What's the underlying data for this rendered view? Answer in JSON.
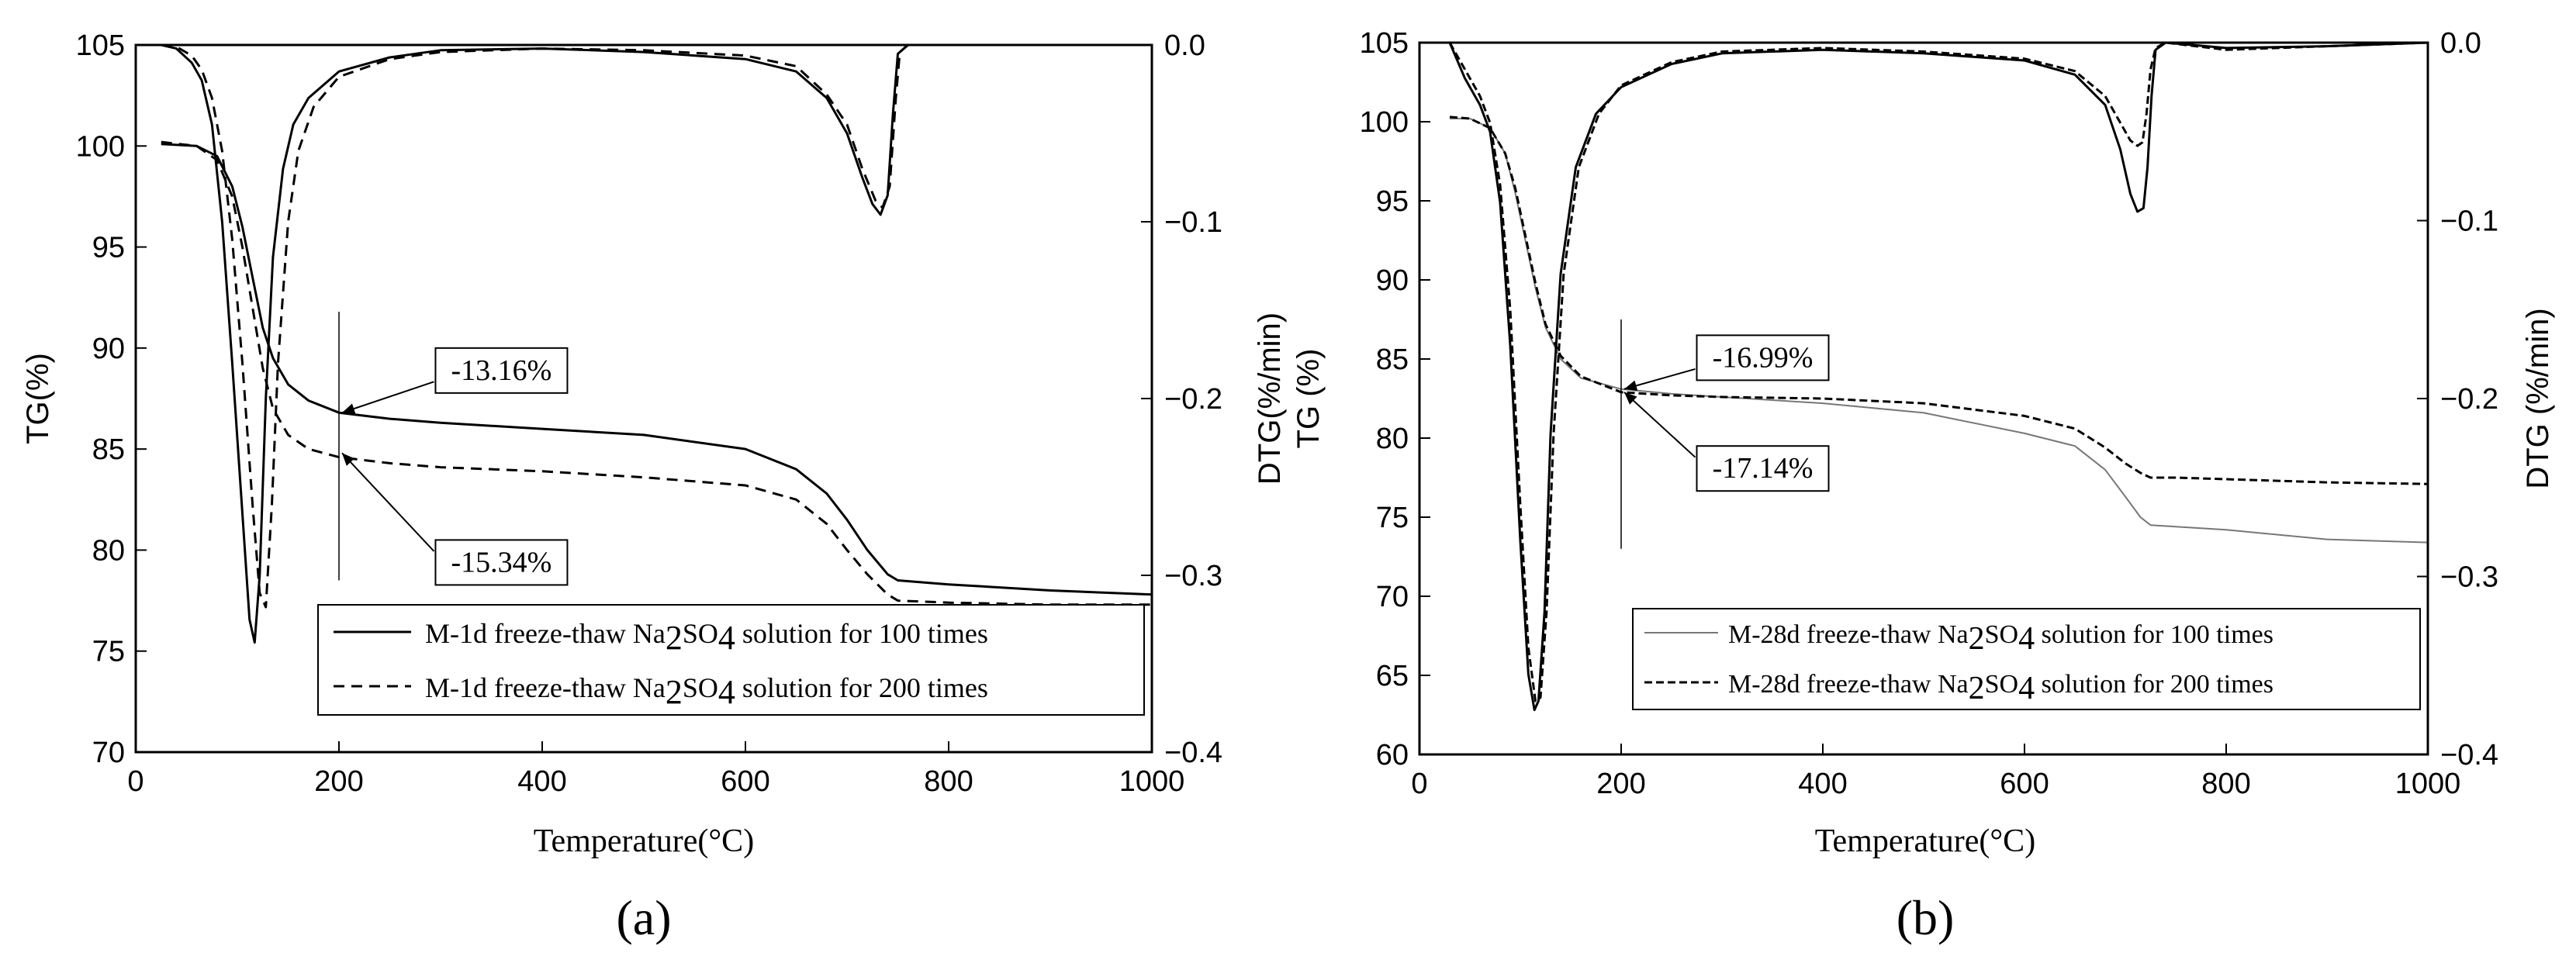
{
  "chart_data": [
    {
      "type": "line",
      "panel_label": "(a)",
      "xlabel": "Temperature(°C)",
      "ylabel_left": "TG(%)",
      "ylabel_right": "DTG(%/min)",
      "xlim": [
        0,
        1000
      ],
      "ylim_left": [
        70,
        105
      ],
      "ylim_right": [
        -0.4,
        0.0
      ],
      "x_ticks": [
        0,
        200,
        400,
        600,
        800,
        1000
      ],
      "x_tick_labels": [
        "0",
        "200",
        "400",
        "600",
        "800",
        "1000"
      ],
      "y_left_ticks": [
        70,
        75,
        80,
        85,
        90,
        95,
        100,
        105
      ],
      "y_left_tick_labels": [
        "70",
        "75",
        "80",
        "85",
        "90",
        "95",
        "100",
        "105"
      ],
      "y_right_ticks": [
        0.0,
        -0.1,
        -0.2,
        -0.3,
        -0.4
      ],
      "y_right_tick_labels": [
        "0.0",
        "−0.1",
        "−0.2",
        "−0.3",
        "−0.4"
      ],
      "vline_x": 200,
      "vline_tg_range": [
        78.5,
        91.8
      ],
      "legend": [
        {
          "pre": "M-1d freeze-thaw Na",
          "sub1": "2",
          "mid": "SO",
          "sub2": "4",
          "post": " solution for 100 times"
        },
        {
          "pre": "M-1d freeze-thaw Na",
          "sub1": "2",
          "mid": "SO",
          "sub2": "4",
          "post": " solution for 200 times"
        }
      ],
      "annotations": [
        {
          "text": "-13.16%",
          "target": [
            200,
            86.8
          ],
          "box_at": [
            295,
            90.0
          ]
        },
        {
          "text": "-15.34%",
          "target": [
            200,
            84.8
          ],
          "box_at": [
            295,
            80.5
          ]
        }
      ],
      "series": [
        {
          "name": "TG 100 times",
          "axis": "left",
          "style": "solid",
          "x": [
            25,
            60,
            80,
            95,
            105,
            115,
            125,
            135,
            150,
            170,
            200,
            250,
            300,
            400,
            500,
            600,
            650,
            680,
            700,
            720,
            740,
            750,
            800,
            900,
            1000
          ],
          "y": [
            100.1,
            100.0,
            99.5,
            98.0,
            96.0,
            93.5,
            91.0,
            89.5,
            88.2,
            87.4,
            86.8,
            86.5,
            86.3,
            86.0,
            85.7,
            85.0,
            84.0,
            82.8,
            81.5,
            80.0,
            78.8,
            78.5,
            78.3,
            78.0,
            77.8
          ]
        },
        {
          "name": "TG 200 times",
          "axis": "left",
          "style": "dashed",
          "x": [
            25,
            60,
            80,
            95,
            105,
            115,
            125,
            135,
            150,
            170,
            200,
            250,
            300,
            400,
            500,
            600,
            650,
            680,
            700,
            720,
            740,
            750,
            800,
            900,
            1000
          ],
          "y": [
            100.2,
            100.0,
            99.3,
            97.5,
            95.0,
            92.0,
            89.0,
            87.0,
            85.7,
            85.0,
            84.6,
            84.3,
            84.1,
            83.9,
            83.6,
            83.2,
            82.5,
            81.3,
            80.0,
            78.8,
            77.8,
            77.5,
            77.4,
            77.3,
            77.3
          ]
        },
        {
          "name": "DTG 100 times",
          "axis": "right",
          "style": "solid",
          "x": [
            25,
            40,
            55,
            65,
            75,
            85,
            95,
            105,
            112,
            117,
            122,
            128,
            135,
            145,
            155,
            170,
            200,
            250,
            300,
            400,
            500,
            600,
            650,
            680,
            700,
            715,
            725,
            733,
            740,
            745,
            750,
            760,
            800,
            900,
            1000
          ],
          "y": [
            0.0,
            -0.002,
            -0.01,
            -0.02,
            -0.045,
            -0.1,
            -0.18,
            -0.265,
            -0.325,
            -0.338,
            -0.3,
            -0.2,
            -0.12,
            -0.07,
            -0.045,
            -0.03,
            -0.015,
            -0.007,
            -0.003,
            -0.002,
            -0.004,
            -0.008,
            -0.015,
            -0.03,
            -0.05,
            -0.075,
            -0.09,
            -0.096,
            -0.085,
            -0.04,
            -0.005,
            0.0,
            0.0,
            0.0,
            0.0
          ]
        },
        {
          "name": "DTG 200 times",
          "axis": "right",
          "style": "dashed",
          "x": [
            25,
            40,
            55,
            65,
            75,
            85,
            95,
            105,
            115,
            122,
            128,
            134,
            140,
            150,
            160,
            175,
            200,
            250,
            300,
            400,
            500,
            600,
            650,
            680,
            700,
            715,
            728,
            735,
            742,
            748,
            752,
            760,
            800,
            900,
            1000
          ],
          "y": [
            0.0,
            -0.001,
            -0.006,
            -0.014,
            -0.03,
            -0.06,
            -0.11,
            -0.18,
            -0.26,
            -0.31,
            -0.318,
            -0.26,
            -0.18,
            -0.1,
            -0.06,
            -0.035,
            -0.018,
            -0.008,
            -0.004,
            -0.002,
            -0.003,
            -0.006,
            -0.012,
            -0.028,
            -0.045,
            -0.07,
            -0.088,
            -0.092,
            -0.08,
            -0.03,
            -0.004,
            0.0,
            0.0,
            0.0,
            0.0
          ]
        }
      ]
    },
    {
      "type": "line",
      "panel_label": "(b)",
      "xlabel": "Temperature(°C)",
      "ylabel_left": "TG (%)",
      "ylabel_right": "DTG (%/min)",
      "xlim": [
        0,
        1000
      ],
      "ylim_left": [
        60,
        105
      ],
      "ylim_right": [
        -0.4,
        0.0
      ],
      "x_ticks": [
        0,
        200,
        400,
        600,
        800,
        1000
      ],
      "x_tick_labels": [
        "0",
        "200",
        "400",
        "600",
        "800",
        "1000"
      ],
      "y_left_ticks": [
        60,
        65,
        70,
        75,
        80,
        85,
        90,
        95,
        100,
        105
      ],
      "y_left_tick_labels": [
        "60",
        "65",
        "70",
        "75",
        "80",
        "85",
        "90",
        "95",
        "100",
        "105"
      ],
      "y_right_ticks": [
        0.0,
        -0.1,
        -0.2,
        -0.3,
        -0.4
      ],
      "y_right_tick_labels": [
        "0.0",
        "−0.1",
        "−0.2",
        "−0.3",
        "−0.4"
      ],
      "vline_x": 200,
      "vline_tg_range": [
        73.0,
        87.5
      ],
      "legend": [
        {
          "pre": "M-28d freeze-thaw Na",
          "sub1": "2",
          "mid": "SO",
          "sub2": "4",
          "post": " solution for 100 times"
        },
        {
          "pre": "M-28d freeze-thaw Na",
          "sub1": "2",
          "mid": "SO",
          "sub2": "4",
          "post": " solution for 200 times"
        }
      ],
      "annotations": [
        {
          "text": "-16.99%",
          "target": [
            200,
            83.1
          ],
          "box_at": [
            275,
            86.5
          ]
        },
        {
          "text": "-17.14%",
          "target": [
            200,
            82.9
          ],
          "box_at": [
            275,
            79.5
          ]
        }
      ],
      "series": [
        {
          "name": "TG 100 times",
          "axis": "left",
          "style": "solid",
          "x": [
            30,
            50,
            70,
            85,
            95,
            105,
            115,
            125,
            140,
            160,
            200,
            250,
            300,
            400,
            500,
            600,
            650,
            680,
            700,
            715,
            725,
            750,
            800,
            900,
            1000
          ],
          "y": [
            100.2,
            100.2,
            99.6,
            98.0,
            95.5,
            92.5,
            89.5,
            87.0,
            85.0,
            83.8,
            83.1,
            82.8,
            82.6,
            82.2,
            81.6,
            80.3,
            79.5,
            78.0,
            76.3,
            75.0,
            74.5,
            74.4,
            74.2,
            73.6,
            73.4
          ]
        },
        {
          "name": "TG 200 times",
          "axis": "left",
          "style": "dashed",
          "x": [
            30,
            50,
            70,
            85,
            95,
            105,
            115,
            125,
            140,
            160,
            200,
            250,
            300,
            400,
            500,
            600,
            650,
            680,
            700,
            715,
            725,
            750,
            800,
            900,
            1000
          ],
          "y": [
            100.3,
            100.2,
            99.6,
            98.0,
            95.8,
            92.8,
            89.8,
            87.2,
            85.2,
            83.9,
            82.9,
            82.7,
            82.6,
            82.5,
            82.2,
            81.4,
            80.6,
            79.4,
            78.4,
            77.8,
            77.5,
            77.5,
            77.4,
            77.2,
            77.1
          ]
        },
        {
          "name": "DTG 100 times",
          "axis": "right",
          "style": "solid",
          "x": [
            30,
            45,
            60,
            70,
            80,
            90,
            100,
            108,
            114,
            118,
            124,
            130,
            140,
            155,
            175,
            200,
            250,
            300,
            400,
            500,
            600,
            650,
            680,
            695,
            705,
            712,
            718,
            722,
            726,
            730,
            740,
            800,
            900,
            1000
          ],
          "y": [
            0.0,
            -0.02,
            -0.035,
            -0.05,
            -0.09,
            -0.17,
            -0.28,
            -0.355,
            -0.375,
            -0.37,
            -0.32,
            -0.22,
            -0.13,
            -0.07,
            -0.04,
            -0.025,
            -0.012,
            -0.006,
            -0.004,
            -0.006,
            -0.01,
            -0.018,
            -0.035,
            -0.06,
            -0.085,
            -0.095,
            -0.093,
            -0.07,
            -0.03,
            -0.004,
            0.0,
            -0.003,
            -0.002,
            0.0
          ]
        },
        {
          "name": "DTG 200 times",
          "axis": "right",
          "style": "dashed",
          "x": [
            30,
            45,
            60,
            70,
            80,
            90,
            100,
            108,
            115,
            120,
            126,
            133,
            143,
            158,
            178,
            200,
            250,
            300,
            400,
            500,
            600,
            650,
            680,
            695,
            705,
            712,
            717,
            721,
            725,
            730,
            740,
            800,
            900,
            1000
          ],
          "y": [
            0.0,
            -0.015,
            -0.03,
            -0.045,
            -0.08,
            -0.15,
            -0.26,
            -0.34,
            -0.37,
            -0.368,
            -0.32,
            -0.22,
            -0.13,
            -0.07,
            -0.04,
            -0.024,
            -0.011,
            -0.005,
            -0.003,
            -0.005,
            -0.009,
            -0.016,
            -0.03,
            -0.045,
            -0.055,
            -0.058,
            -0.056,
            -0.04,
            -0.015,
            -0.003,
            0.0,
            -0.004,
            -0.002,
            0.0
          ]
        }
      ]
    }
  ]
}
